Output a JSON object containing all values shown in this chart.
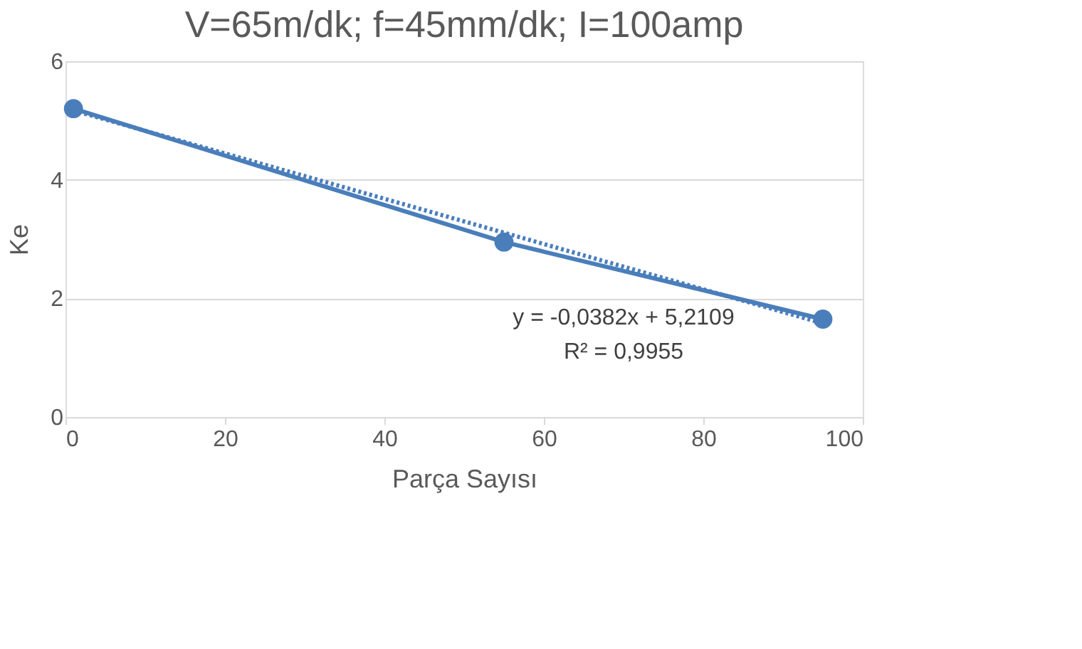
{
  "chart_data": {
    "type": "line",
    "title": "V=65m/dk; f=45mm/dk; I=100amp",
    "xlabel": "Parça Sayısı",
    "ylabel": "Ke",
    "series": [
      {
        "color": "#4a7ebb",
        "x": [
          1,
          55,
          95
        ],
        "values": [
          5.2,
          2.95,
          1.65
        ],
        "marker": "circle",
        "line_style": "solid"
      },
      {
        "color": "#4a7ebb",
        "x": [
          1,
          95
        ],
        "values": [
          5.17,
          1.58
        ],
        "marker": "none",
        "line_style": "dotted"
      }
    ],
    "annotations": [
      "y = -0,0382x + 5,2109",
      "R² = 0,9955"
    ],
    "xlim": [
      0,
      100
    ],
    "xticks": [
      0,
      20,
      40,
      60,
      80,
      100
    ],
    "ylim": [
      0,
      6
    ],
    "yticks": [
      0,
      2,
      4,
      6
    ],
    "grid": "y"
  }
}
